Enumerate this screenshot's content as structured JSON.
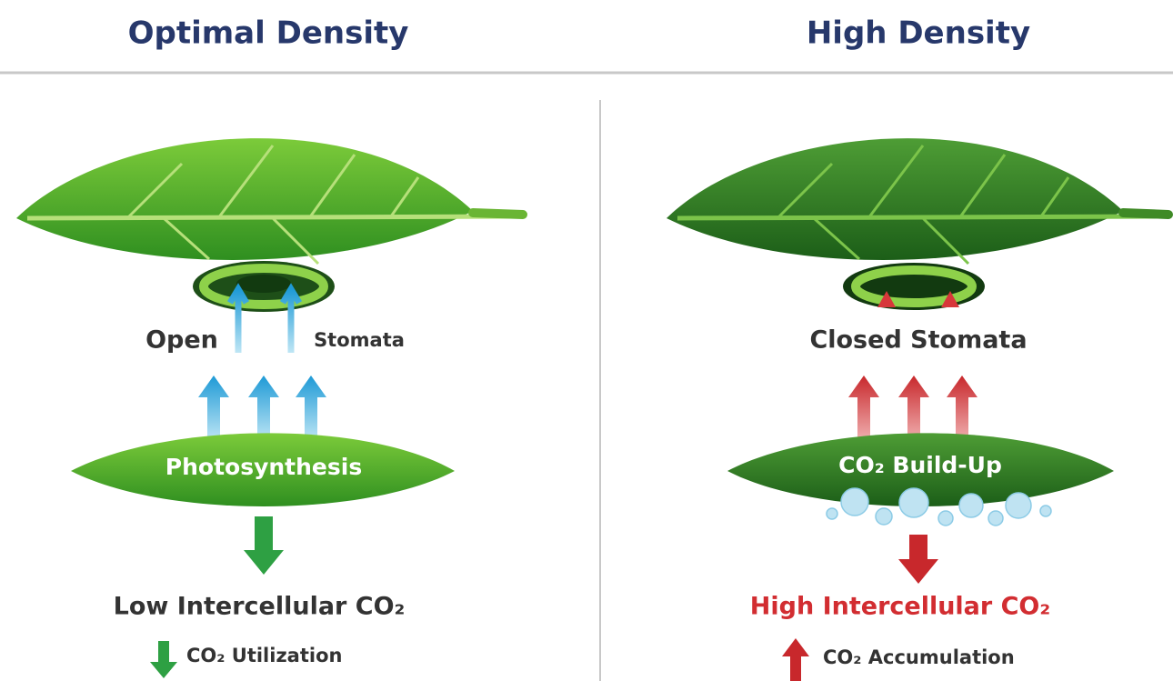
{
  "panels": [
    {
      "title": "Optimal Density",
      "stomata_label_left": "Open",
      "stomata_label_right": "Stomata",
      "process": "Photosynthesis",
      "result": "Low Intercellular CO₂",
      "effect": "CO₂ Utilization"
    },
    {
      "title": "High Density",
      "stomata_label": "Closed Stomata",
      "process": "CO₂ Build-Up",
      "result": "High Intercellular CO₂",
      "effect": "CO₂ Accumulation"
    }
  ]
}
